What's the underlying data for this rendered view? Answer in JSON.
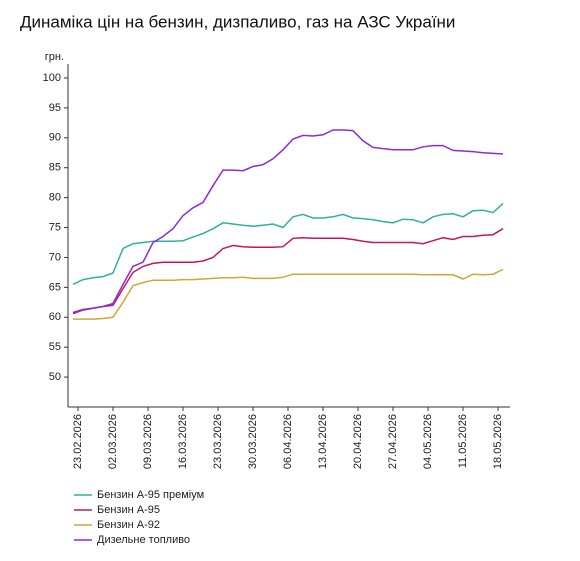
{
  "chart_data": {
    "type": "line",
    "title": "Динаміка цін на бензин, дизпаливо, газ на АЗС України",
    "y_label": "грн.",
    "x": [
      "22.02.2026",
      "24.02.2026",
      "26.02.2026",
      "28.02.2026",
      "02.03.2026",
      "04.03.2026",
      "06.03.2026",
      "08.03.2026",
      "10.03.2026",
      "12.03.2026",
      "14.03.2026",
      "16.03.2026",
      "18.03.2026",
      "20.03.2026",
      "22.03.2026",
      "24.03.2026",
      "26.03.2026",
      "28.03.2026",
      "30.03.2026",
      "01.04.2026",
      "03.04.2026",
      "05.04.2026",
      "07.04.2026",
      "09.04.2026",
      "11.04.2026",
      "13.04.2026",
      "15.04.2026",
      "17.04.2026",
      "19.04.2026",
      "21.04.2026",
      "23.04.2026",
      "25.04.2026",
      "27.04.2026",
      "29.04.2026",
      "01.05.2026",
      "03.05.2026",
      "05.05.2026",
      "07.05.2026",
      "09.05.2026",
      "11.05.2026",
      "13.05.2026",
      "15.05.2026",
      "17.05.2026",
      "19.05.2026"
    ],
    "series": [
      {
        "name": "Бензин А-95 преміум",
        "color": "#2db39b",
        "values": [
          65.5,
          66.3,
          66.6,
          66.8,
          67.4,
          71.5,
          72.3,
          72.5,
          72.7,
          72.7,
          72.7,
          72.8,
          73.4,
          74.0,
          74.8,
          75.8,
          75.6,
          75.4,
          75.2,
          75.4,
          75.6,
          75.0,
          76.8,
          77.2,
          76.6,
          76.6,
          76.8,
          77.2,
          76.6,
          76.5,
          76.3,
          76.0,
          75.8,
          76.4,
          76.3,
          75.8,
          76.8,
          77.2,
          77.3,
          76.8,
          77.8,
          77.9,
          77.5,
          79.0
        ]
      },
      {
        "name": "Бензин А-95",
        "color": "#c2185b",
        "values": [
          60.8,
          61.3,
          61.5,
          61.8,
          62.0,
          64.8,
          67.5,
          68.5,
          69.0,
          69.2,
          69.2,
          69.2,
          69.2,
          69.4,
          70.0,
          71.5,
          72.0,
          71.8,
          71.7,
          71.7,
          71.7,
          71.8,
          73.2,
          73.3,
          73.2,
          73.2,
          73.2,
          73.2,
          73.0,
          72.7,
          72.5,
          72.5,
          72.5,
          72.5,
          72.5,
          72.3,
          72.8,
          73.3,
          73.0,
          73.5,
          73.5,
          73.7,
          73.8,
          74.8
        ]
      },
      {
        "name": "Бензин А-92",
        "color": "#d4a637",
        "values": [
          59.7,
          59.7,
          59.7,
          59.8,
          60.0,
          62.5,
          65.3,
          65.8,
          66.2,
          66.2,
          66.2,
          66.3,
          66.3,
          66.4,
          66.5,
          66.6,
          66.6,
          66.7,
          66.5,
          66.5,
          66.5,
          66.7,
          67.2,
          67.2,
          67.2,
          67.2,
          67.2,
          67.2,
          67.2,
          67.2,
          67.2,
          67.2,
          67.2,
          67.2,
          67.2,
          67.1,
          67.1,
          67.1,
          67.1,
          66.4,
          67.2,
          67.1,
          67.2,
          68.0
        ]
      },
      {
        "name": "Дизельне топливо",
        "color": "#8a2be2",
        "values": [
          60.6,
          61.2,
          61.5,
          61.8,
          62.3,
          65.5,
          68.5,
          69.2,
          72.5,
          73.5,
          74.8,
          77.0,
          78.3,
          79.2,
          82.0,
          84.6,
          84.6,
          84.5,
          85.2,
          85.5,
          86.5,
          88.0,
          89.8,
          90.4,
          90.3,
          90.5,
          91.3,
          91.3,
          91.2,
          89.5,
          88.4,
          88.2,
          88.0,
          88.0,
          88.0,
          88.5,
          88.7,
          88.7,
          87.9,
          87.8,
          87.7,
          87.5,
          87.4,
          87.3
        ]
      }
    ],
    "xlim": [
      "21.02.2026",
      "20.05.2026"
    ],
    "xticks": [
      "23.02.2026",
      "02.03.2026",
      "09.03.2026",
      "16.03.2026",
      "23.03.2026",
      "30.03.2026",
      "06.04.2026",
      "13.04.2026",
      "20.04.2026",
      "27.04.2026",
      "04.05.2026",
      "11.05.2026",
      "18.05.2026"
    ],
    "ylim": [
      45,
      100
    ],
    "yticks": [
      50,
      55,
      60,
      65,
      70,
      75,
      80,
      85,
      90,
      95,
      100
    ]
  }
}
